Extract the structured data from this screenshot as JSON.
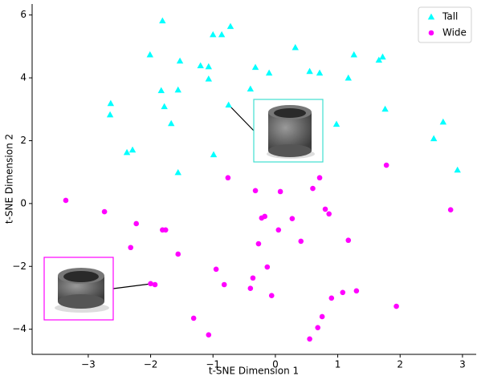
{
  "chart_data": {
    "type": "scatter",
    "x_label": "t-SNE Dimension 1",
    "y_label": "t-SNE Dimension 2",
    "xlim": [
      -3.9,
      3.22
    ],
    "ylim": [
      -4.8,
      6.35
    ],
    "xticks": [
      {
        "value": -3,
        "label": "−3"
      },
      {
        "value": -2,
        "label": "−2"
      },
      {
        "value": -1,
        "label": "−1"
      },
      0,
      1,
      2,
      3
    ],
    "yticks": [
      {
        "value": -4,
        "label": "−4"
      },
      {
        "value": -2,
        "label": "−2"
      },
      0,
      2,
      4,
      6
    ],
    "grid": false,
    "legend": "upper right",
    "series": [
      {
        "name": "Tall",
        "color": "#00ffff",
        "marker": "triangle",
        "x": [
          -1.81,
          -1.0,
          -0.86,
          -0.72,
          -2.01,
          -1.53,
          0.32,
          1.26,
          1.66,
          1.72,
          -1.2,
          -1.07,
          -0.32,
          -0.1,
          0.55,
          0.71,
          -1.07,
          -1.83,
          -1.56,
          -0.4,
          1.17,
          -2.64,
          -2.65,
          -1.78,
          -0.75,
          1.76,
          -1.67,
          0.98,
          2.69,
          -2.38,
          -2.29,
          -0.99,
          2.54,
          -1.56,
          2.92
        ],
        "values": [
          5.82,
          5.38,
          5.38,
          5.64,
          4.74,
          4.54,
          4.97,
          4.74,
          4.57,
          4.67,
          4.39,
          4.36,
          4.34,
          4.16,
          4.21,
          4.16,
          3.97,
          3.6,
          3.62,
          3.65,
          4.0,
          3.19,
          2.83,
          3.09,
          3.14,
          3.01,
          2.55,
          2.53,
          2.6,
          1.63,
          1.71,
          1.56,
          2.07,
          0.99,
          1.07
        ]
      },
      {
        "name": "Wide",
        "color": "#ff00ff",
        "marker": "circle",
        "x": [
          -3.36,
          -2.74,
          -0.76,
          -0.32,
          0.08,
          0.6,
          0.71,
          1.78,
          -2.23,
          -1.81,
          -1.76,
          -0.22,
          -0.17,
          0.27,
          0.8,
          0.86,
          2.81,
          0.05,
          -0.27,
          0.41,
          1.17,
          -2.32,
          -1.56,
          -0.13,
          -0.95,
          -0.36,
          -2.0,
          -1.93,
          -0.82,
          -0.4,
          -0.06,
          1.08,
          1.3,
          0.9,
          1.94,
          -1.31,
          0.75,
          0.68,
          -1.07,
          0.55
        ],
        "values": [
          0.1,
          -0.26,
          0.82,
          0.41,
          0.38,
          0.48,
          0.82,
          1.22,
          -0.64,
          -0.84,
          -0.84,
          -0.46,
          -0.41,
          -0.48,
          -0.18,
          -0.33,
          -0.2,
          -0.84,
          -1.28,
          -1.2,
          -1.17,
          -1.4,
          -1.61,
          -2.02,
          -2.09,
          -2.37,
          -2.55,
          -2.58,
          -2.58,
          -2.7,
          -2.93,
          -2.83,
          -2.78,
          -3.01,
          -3.27,
          -3.65,
          -3.6,
          -3.95,
          -4.18,
          -4.31
        ]
      }
    ]
  }
}
